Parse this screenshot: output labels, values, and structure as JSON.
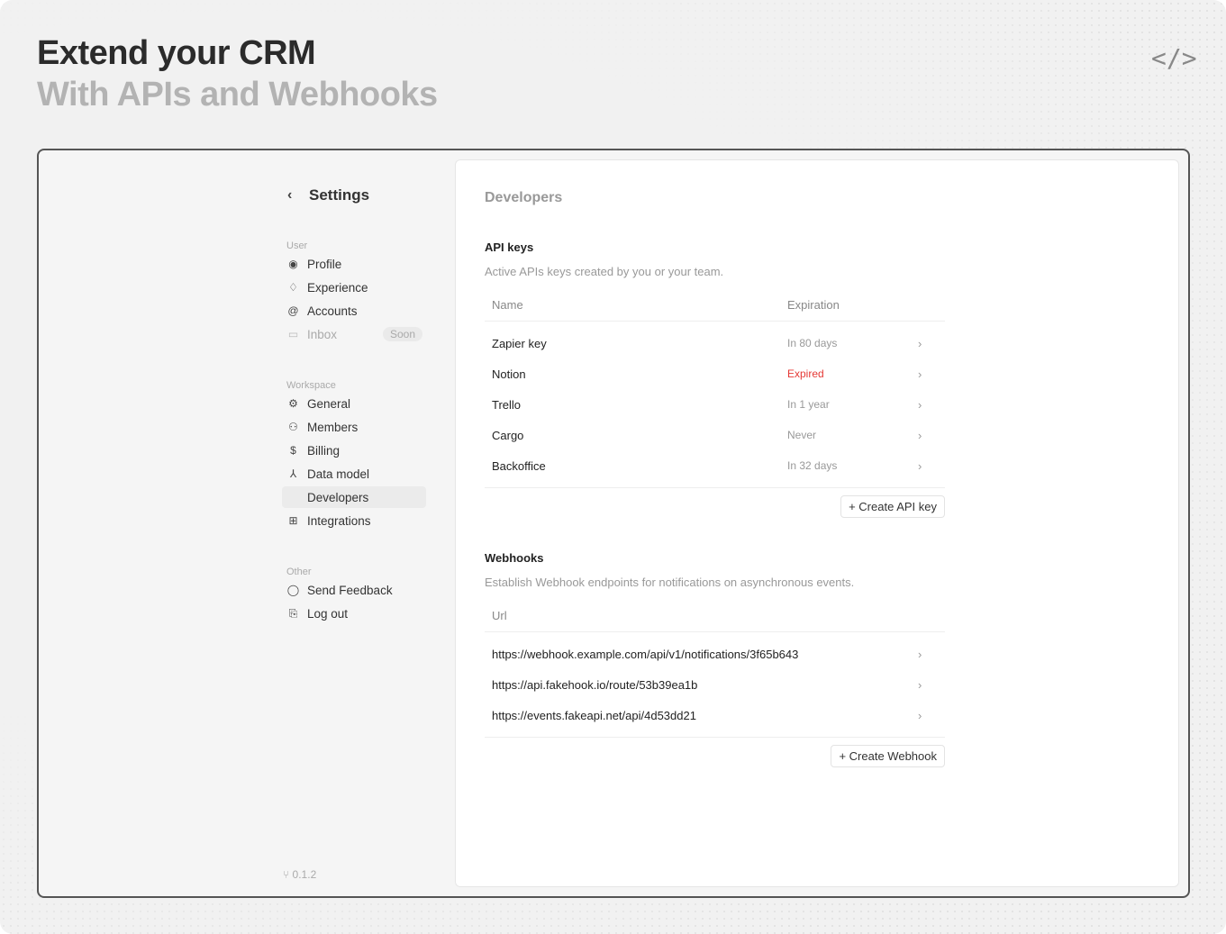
{
  "hero": {
    "title": "Extend your CRM",
    "subtitle": "With APIs and Webhooks",
    "icon": "code-icon"
  },
  "sidebar": {
    "back_label": "Settings",
    "sections": [
      {
        "label": "User",
        "items": [
          {
            "label": "Profile",
            "icon": "user-circle-icon"
          },
          {
            "label": "Experience",
            "icon": "bell-icon"
          },
          {
            "label": "Accounts",
            "icon": "at-icon"
          },
          {
            "label": "Inbox",
            "icon": "inbox-icon",
            "badge": "Soon"
          }
        ]
      },
      {
        "label": "Workspace",
        "items": [
          {
            "label": "General",
            "icon": "gear-icon"
          },
          {
            "label": "Members",
            "icon": "users-icon"
          },
          {
            "label": "Billing",
            "icon": "dollar-icon"
          },
          {
            "label": "Data model",
            "icon": "hierarchy-icon"
          },
          {
            "label": "Developers",
            "icon": "code-icon",
            "active": true
          },
          {
            "label": "Integrations",
            "icon": "apps-icon"
          }
        ]
      },
      {
        "label": "Other",
        "items": [
          {
            "label": "Send Feedback",
            "icon": "message-icon"
          },
          {
            "label": "Log out",
            "icon": "logout-icon"
          }
        ]
      }
    ],
    "version": "0.1.2"
  },
  "main": {
    "title": "Developers",
    "api_keys": {
      "title": "API keys",
      "description": "Active APIs keys created by you or your team.",
      "columns": [
        "Name",
        "Expiration"
      ],
      "rows": [
        {
          "name": "Zapier key",
          "expiration": "In 80 days"
        },
        {
          "name": "Notion",
          "expiration": "Expired"
        },
        {
          "name": "Trello",
          "expiration": "In 1 year"
        },
        {
          "name": "Cargo",
          "expiration": "Never"
        },
        {
          "name": "Backoffice",
          "expiration": "In 32 days"
        }
      ],
      "button": "+ Create API key"
    },
    "webhooks": {
      "title": "Webhooks",
      "description": "Establish Webhook endpoints for notifications on asynchronous events.",
      "columns": [
        "Url"
      ],
      "rows": [
        "https://webhook.example.com/api/v1/notifications/3f65b643",
        "https://api.fakehook.io/route/53b39ea1b",
        "https://events.fakeapi.net/api/4d53dd21"
      ],
      "button": "+ Create Webhook"
    },
    "expired_color": "#e53935"
  }
}
